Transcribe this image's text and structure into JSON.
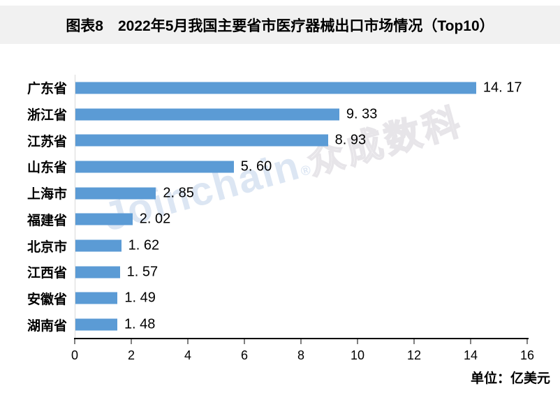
{
  "header": {
    "title": "图表8　2022年5月我国主要省市医疗器械出口市场情况（Top10）",
    "background": "#f1f1f1"
  },
  "watermark": {
    "latin": "Joinchain",
    "reg": "®",
    "cjk": "众成数科",
    "latin_color": "#dce6f3",
    "cjk_color": "#e7e5e9"
  },
  "footer": {
    "unit_label": "单位：亿美元"
  },
  "chart_data": {
    "type": "bar",
    "orientation": "horizontal",
    "title": "图表8 2022年5月我国主要省市医疗器械出口市场情况（Top10）",
    "categories": [
      "广东省",
      "浙江省",
      "江苏省",
      "山东省",
      "上海市",
      "福建省",
      "北京市",
      "江西省",
      "安徽省",
      "湖南省"
    ],
    "values": [
      14.17,
      9.33,
      8.93,
      5.6,
      2.85,
      2.02,
      1.62,
      1.57,
      1.49,
      1.48
    ],
    "value_labels": [
      "14. 17",
      "9. 33",
      "8. 93",
      "5. 60",
      "2. 85",
      "2. 02",
      "1. 62",
      "1. 57",
      "1. 49",
      "1. 48"
    ],
    "x_ticks": [
      0,
      2,
      4,
      6,
      8,
      10,
      12,
      14,
      16
    ],
    "xlim": [
      0,
      16
    ],
    "bar_color": "#5B9BD5",
    "unit": "亿美元",
    "grid": false,
    "legend": false,
    "axis_line_color": "#000000",
    "category_axis_line_color": "#d9d9d9"
  }
}
